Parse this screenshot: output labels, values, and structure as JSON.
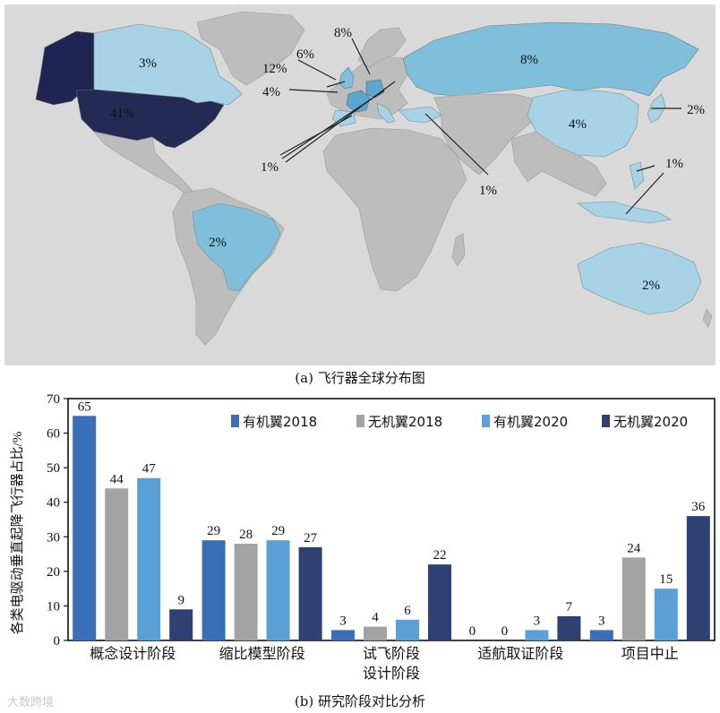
{
  "map": {
    "caption": "(a) 飞行器全球分布图",
    "labels": {
      "canada": "3%",
      "usa": "41%",
      "brazil": "2%",
      "russia": "8%",
      "china": "4%",
      "japan": "2%",
      "australia": "2%",
      "uk": "4%",
      "france": "12%",
      "netherlands": "6%",
      "germany": "8%",
      "south_europe": "1%",
      "israel": "1%",
      "sea": "1%"
    },
    "colors": {
      "ocean": "#d9d9d9",
      "land": "#bdbdbd",
      "level1": "#a8d3e6",
      "level2": "#7fbfdc",
      "level3": "#5aa6cf",
      "usa": "#232a54",
      "alaska": "#1e2552"
    }
  },
  "chart_data": {
    "type": "bar",
    "ylabel": "各类电驱动垂直起降飞行器占比/%",
    "ylim": [
      0,
      70
    ],
    "yticks": [
      0,
      10,
      20,
      30,
      40,
      50,
      60,
      70
    ],
    "categories": [
      "概念设计阶段",
      "缩比模型阶段",
      "试飞阶段\n设计阶段",
      "适航取证阶段",
      "项目中止"
    ],
    "category_lines": [
      [
        "概念设计阶段"
      ],
      [
        "缩比模型阶段"
      ],
      [
        "试飞阶段",
        "设计阶段"
      ],
      [
        "适航取证阶段"
      ],
      [
        "项目中止"
      ]
    ],
    "series": [
      {
        "name": "有机翼2018",
        "color": "#3a6fb7",
        "values": [
          65,
          29,
          3,
          0,
          3
        ]
      },
      {
        "name": "无机翼2018",
        "color": "#a3a3a3",
        "values": [
          44,
          28,
          4,
          0,
          24
        ]
      },
      {
        "name": "有机翼2020",
        "color": "#5aa0d6",
        "values": [
          47,
          29,
          6,
          3,
          15
        ]
      },
      {
        "name": "无机翼2020",
        "color": "#2e4172",
        "values": [
          9,
          27,
          22,
          7,
          36
        ]
      }
    ],
    "legend_position": "top-right",
    "caption": "(b) 研究阶段对比分析"
  },
  "watermark": "大数跨境"
}
